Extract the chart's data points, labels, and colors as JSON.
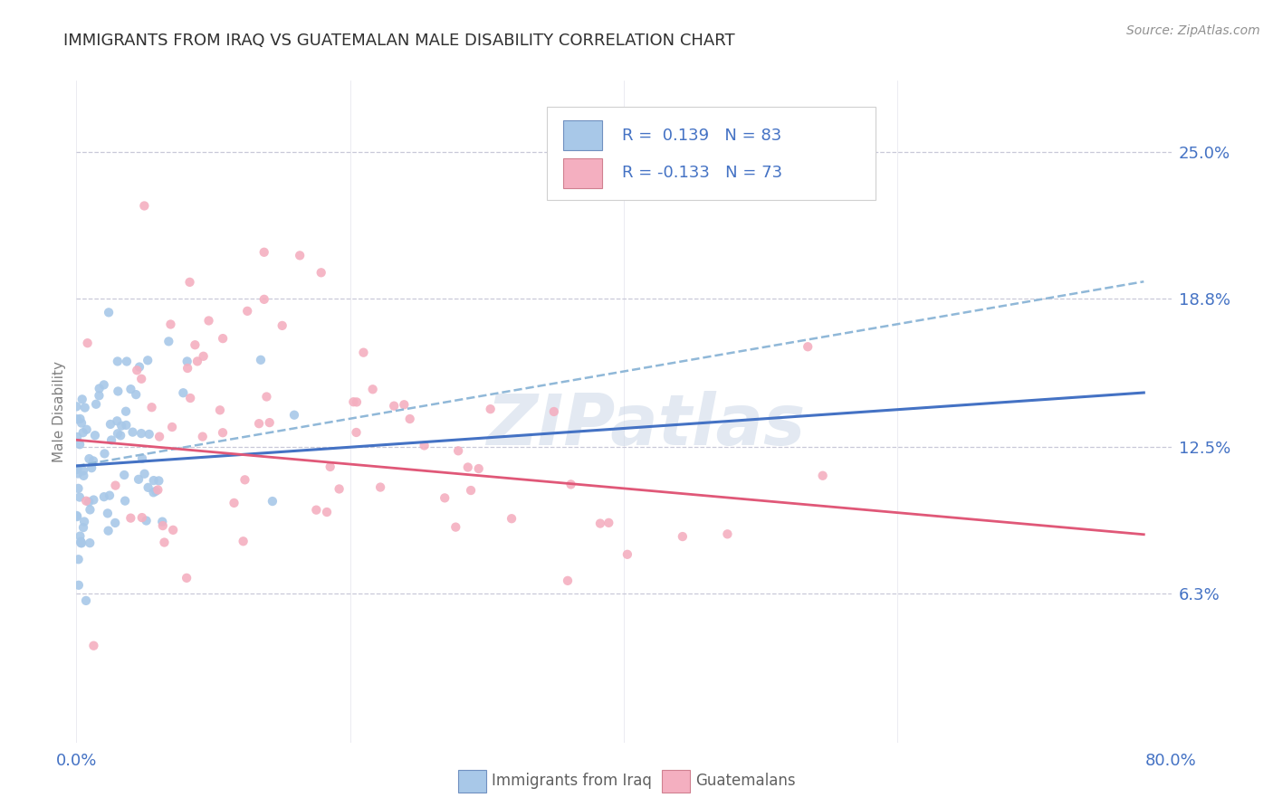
{
  "title": "IMMIGRANTS FROM IRAQ VS GUATEMALAN MALE DISABILITY CORRELATION CHART",
  "source": "Source: ZipAtlas.com",
  "ylabel": "Male Disability",
  "xlim": [
    0.0,
    0.8
  ],
  "ylim": [
    0.0,
    0.28
  ],
  "yticks": [
    0.063,
    0.125,
    0.188,
    0.25
  ],
  "ytick_labels": [
    "6.3%",
    "12.5%",
    "18.8%",
    "25.0%"
  ],
  "xticks": [
    0.0,
    0.8
  ],
  "xtick_labels": [
    "0.0%",
    "80.0%"
  ],
  "r_iraq": 0.139,
  "n_iraq": 83,
  "r_guatemalan": -0.133,
  "n_guatemalan": 73,
  "iraq_color": "#a8c8e8",
  "guatemalan_color": "#f4afc0",
  "iraq_line_color": "#4472c4",
  "guatemalan_line_color": "#e05878",
  "conf_line_color": "#90b8d8",
  "legend_label_iraq": "Immigrants from Iraq",
  "legend_label_guatemalan": "Guatemalans",
  "watermark_text": "ZIPatlas",
  "background_color": "#ffffff",
  "grid_color": "#c8c8d8",
  "title_color": "#303030",
  "tick_label_color": "#4472c4",
  "ylabel_color": "#808080",
  "source_color": "#909090",
  "bottom_label_color": "#606060",
  "iraq_trend_x0": 0.0,
  "iraq_trend_x1": 0.78,
  "iraq_trend_y0": 0.117,
  "iraq_trend_y1": 0.148,
  "conf_trend_x0": 0.0,
  "conf_trend_x1": 0.78,
  "conf_trend_y0": 0.117,
  "conf_trend_y1": 0.195,
  "guat_trend_x0": 0.0,
  "guat_trend_x1": 0.78,
  "guat_trend_y0": 0.128,
  "guat_trend_y1": 0.088
}
